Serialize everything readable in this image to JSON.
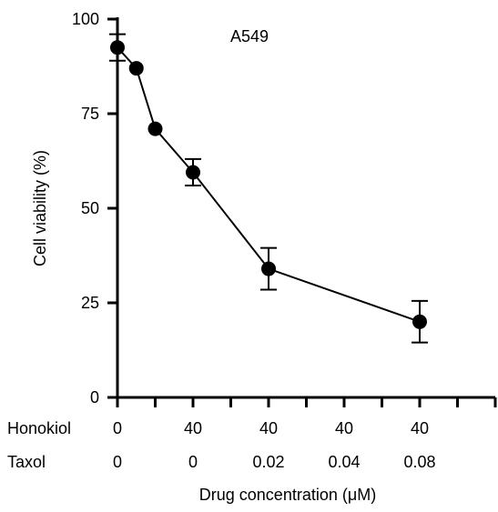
{
  "chart_data": {
    "type": "line",
    "title": "A549",
    "ylabel": "Cell viability (%)",
    "xlabel": "Drug concentration (μM)",
    "ylim": [
      0,
      100
    ],
    "yticks": [
      0,
      25,
      50,
      75,
      100
    ],
    "grid": false,
    "x_rows": [
      {
        "label": "Honokiol",
        "values": [
          "0",
          "40",
          "40",
          "40",
          "40"
        ]
      },
      {
        "label": "Taxol",
        "values": [
          "0",
          "0",
          "0.02",
          "0.04",
          "0.08"
        ]
      }
    ],
    "x_label_slots": [
      0,
      2,
      4,
      6,
      8
    ],
    "x_range": [
      0,
      10
    ],
    "series": [
      {
        "x": [
          0,
          0.5,
          1,
          2,
          4,
          8
        ],
        "y": [
          92.5,
          87,
          71,
          59.5,
          34,
          20
        ],
        "error": [
          3.5,
          0,
          0,
          3.5,
          5.5,
          5.5
        ]
      }
    ]
  }
}
